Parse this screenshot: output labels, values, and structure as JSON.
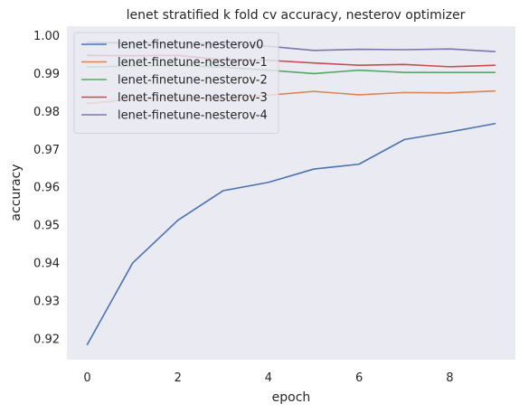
{
  "chart_data": {
    "type": "line",
    "title": "lenet stratified k fold cv accuracy, nesterov optimizer",
    "xlabel": "epoch",
    "ylabel": "accuracy",
    "x": [
      0,
      1,
      2,
      3,
      4,
      5,
      6,
      7,
      8,
      9
    ],
    "xlim": [
      -0.45,
      9.45
    ],
    "ylim": [
      0.9145,
      1.0025
    ],
    "xticks": [
      0,
      2,
      4,
      6,
      8
    ],
    "yticks": [
      0.92,
      0.93,
      0.94,
      0.95,
      0.96,
      0.97,
      0.98,
      0.99,
      1.0
    ],
    "ytick_labels": [
      "0.92",
      "0.93",
      "0.94",
      "0.95",
      "0.96",
      "0.97",
      "0.98",
      "0.99",
      "1.00"
    ],
    "grid": false,
    "legend_position": "top-left",
    "background": "#eaeaf2",
    "series": [
      {
        "name": "lenet-finetune-nesterov0",
        "color": "#4c72b0",
        "values": [
          0.9185,
          0.94,
          0.9513,
          0.9591,
          0.9613,
          0.9648,
          0.9661,
          0.9726,
          0.9746,
          0.9768
        ]
      },
      {
        "name": "lenet-finetune-nesterov-1",
        "color": "#dd8452",
        "values": [
          0.9821,
          0.9832,
          0.9836,
          0.9833,
          0.9843,
          0.9853,
          0.9844,
          0.985,
          0.9849,
          0.9854
        ]
      },
      {
        "name": "lenet-finetune-nesterov-2",
        "color": "#55a868",
        "values": [
          0.9917,
          0.992,
          0.9921,
          0.9917,
          0.9909,
          0.99,
          0.9909,
          0.9903,
          0.9903,
          0.9903
        ]
      },
      {
        "name": "lenet-finetune-nesterov-3",
        "color": "#c44e52",
        "values": [
          0.9948,
          0.9947,
          0.9948,
          0.9936,
          0.9935,
          0.9928,
          0.9922,
          0.9924,
          0.9918,
          0.9922
        ]
      },
      {
        "name": "lenet-finetune-nesterov-4",
        "color": "#8172b3",
        "values": [
          0.9983,
          0.998,
          0.998,
          0.9978,
          0.9972,
          0.9961,
          0.9964,
          0.9963,
          0.9965,
          0.9958
        ]
      }
    ]
  }
}
